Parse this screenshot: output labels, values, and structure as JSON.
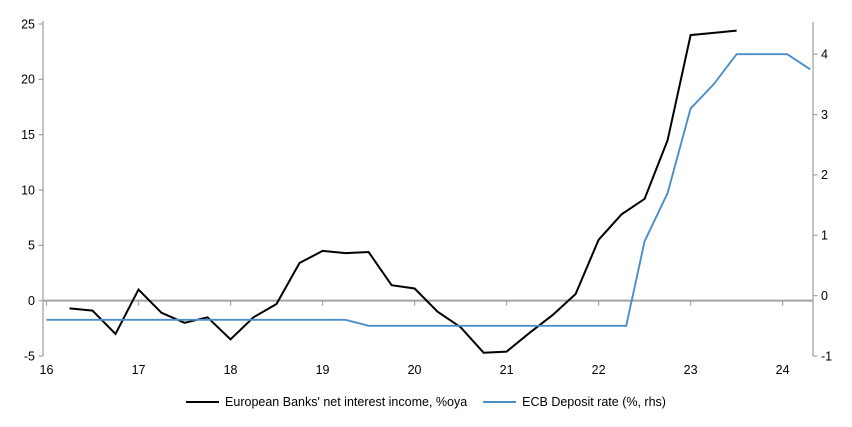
{
  "chart_data": {
    "type": "line",
    "title": "",
    "x_axis": {
      "ticks": [
        16,
        17,
        18,
        19,
        20,
        21,
        22,
        23,
        24
      ],
      "range": [
        16,
        24.33
      ],
      "gridlines": false
    },
    "left_axis": {
      "ticks": [
        25,
        20,
        15,
        10,
        5,
        0,
        -5
      ],
      "range": [
        -5,
        25
      ]
    },
    "right_axis": {
      "ticks": [
        4,
        3,
        2,
        1,
        0,
        -1
      ],
      "range": [
        -1,
        4.5
      ]
    },
    "zero_gridline": true,
    "axis_color": "#a3a3a3",
    "series": [
      {
        "name": "European Banks' net interest income, %oya",
        "axis": "left",
        "color": "#000000",
        "stroke_width": 2,
        "x": [
          16.25,
          16.5,
          16.75,
          17.0,
          17.25,
          17.5,
          17.75,
          18.0,
          18.25,
          18.5,
          18.75,
          19.0,
          19.25,
          19.5,
          19.75,
          20.0,
          20.25,
          20.5,
          20.75,
          21.0,
          21.25,
          21.5,
          21.75,
          22.0,
          22.25,
          22.5,
          22.75,
          23.0,
          23.25,
          23.5
        ],
        "values": [
          -0.7,
          -0.9,
          -3.0,
          1.0,
          -1.1,
          -2.0,
          -1.5,
          -3.5,
          -1.5,
          -0.3,
          3.4,
          4.5,
          4.3,
          4.4,
          1.4,
          1.1,
          -1.0,
          -2.4,
          -4.7,
          -4.6,
          -2.9,
          -1.3,
          0.6,
          5.5,
          7.8,
          9.2,
          14.5,
          24.0,
          24.2,
          24.4
        ]
      },
      {
        "name": "ECB Deposit rate (%, rhs)",
        "axis": "right",
        "color": "#4a8fc9",
        "stroke_width": 1.9,
        "x": [
          16.0,
          19.25,
          19.5,
          22.3,
          22.5,
          22.75,
          23.0,
          23.25,
          23.5,
          24.05,
          24.3
        ],
        "values": [
          -0.4,
          -0.4,
          -0.5,
          -0.5,
          0.9,
          1.7,
          3.1,
          3.5,
          4.0,
          4.0,
          3.75
        ]
      }
    ]
  }
}
